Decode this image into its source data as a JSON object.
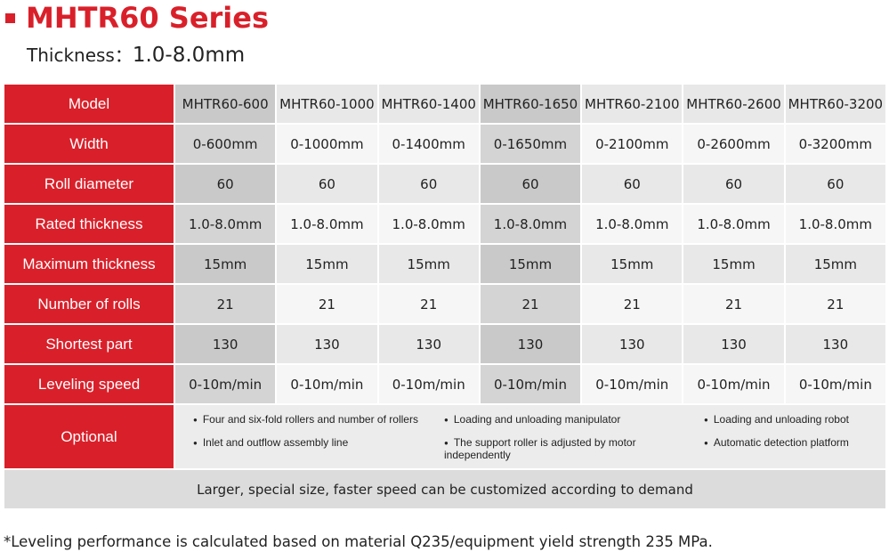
{
  "header": {
    "title": "MHTR60 Series",
    "subtitle_label": "Thickness：",
    "subtitle_value": "1.0-8.0mm"
  },
  "table": {
    "header": [
      "Model",
      "MHTR60-600",
      "MHTR60-1000",
      "MHTR60-1400",
      "MHTR60-1650",
      "MHTR60-2100",
      "MHTR60-2600",
      "MHTR60-3200"
    ],
    "rows": [
      [
        "Width",
        "0-600mm",
        "0-1000mm",
        "0-1400mm",
        "0-1650mm",
        "0-2100mm",
        "0-2600mm",
        "0-3200mm"
      ],
      [
        "Roll diameter",
        "60",
        "60",
        "60",
        "60",
        "60",
        "60",
        "60"
      ],
      [
        "Rated thickness",
        "1.0-8.0mm",
        "1.0-8.0mm",
        "1.0-8.0mm",
        "1.0-8.0mm",
        "1.0-8.0mm",
        "1.0-8.0mm",
        "1.0-8.0mm"
      ],
      [
        "Maximum thickness",
        "15mm",
        "15mm",
        "15mm",
        "15mm",
        "15mm",
        "15mm",
        "15mm"
      ],
      [
        "Number of rolls",
        "21",
        "21",
        "21",
        "21",
        "21",
        "21",
        "21"
      ],
      [
        "Shortest part",
        "130",
        "130",
        "130",
        "130",
        "130",
        "130",
        "130"
      ],
      [
        "Leveling speed",
        "0-10m/min",
        "0-10m/min",
        "0-10m/min",
        "0-10m/min",
        "0-10m/min",
        "0-10m/min",
        "0-10m/min"
      ]
    ],
    "optional": {
      "label": "Optional",
      "items": [
        "Four and six-fold rollers and number of rollers",
        "Loading and unloading manipulator",
        "Loading and unloading robot",
        "Inlet and outflow assembly line",
        "The support roller is adjusted by motor independently",
        "Automatic detection platform"
      ]
    },
    "note": "Larger, special size, faster speed can be customized according to demand"
  },
  "footnote": "*Leveling performance is calculated based on material Q235/equipment yield strength 235 MPa."
}
